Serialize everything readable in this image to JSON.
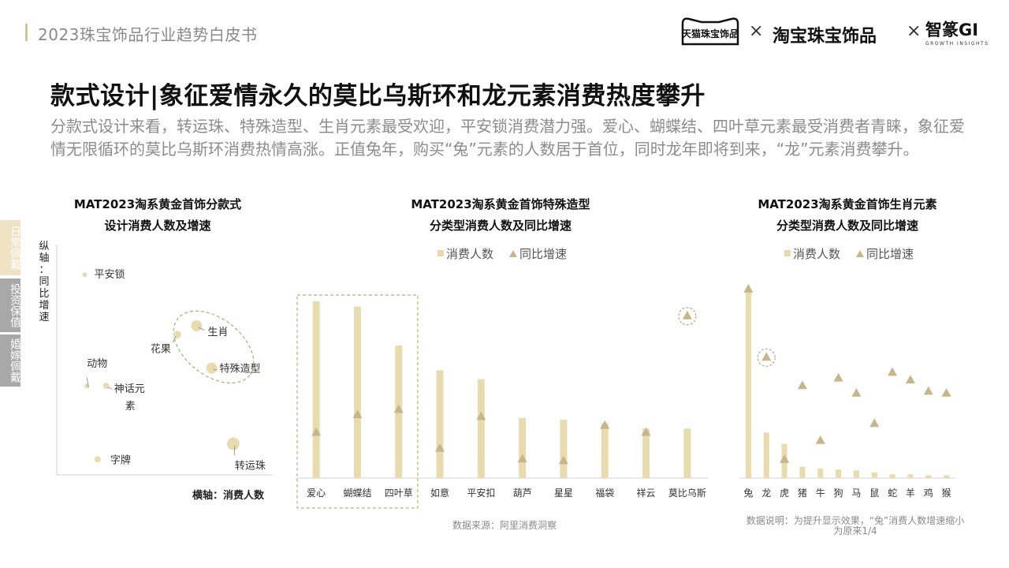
{
  "header": {
    "report_title": "2023珠宝饰品行业趋势白皮书",
    "brands": [
      "天猫珠宝饰品",
      "淘宝珠宝饰品",
      "智篆GI"
    ],
    "brand_sub": "GROWTH INSIGHTS",
    "separator": "×"
  },
  "main": {
    "title": "款式设计|象征爱情永久的莫比乌斯环和龙元素消费热度攀升",
    "description": "分款式设计来看，转运珠、特殊造型、生肖元素最受欢迎，平安锁消费潜力强。爱心、蝴蝶结、四叶草元素最受消费者青睐，象征爱情无限循环的莫比乌斯环消费热情高涨。正值兔年，购买“兔”元素的人数居于首位，同时龙年即将到来，“龙”元素消费攀升。"
  },
  "side_tabs": [
    {
      "label": "日常佩戴",
      "color": "#efe3c4"
    },
    {
      "label": "投资保值",
      "color": "#a8a8a8"
    },
    {
      "label": "婚嫁佩戴",
      "color": "#a8a8a8"
    }
  ],
  "colors": {
    "bar": "#e8dcae",
    "marker": "#c9b58a",
    "accent": "#d9c48e"
  },
  "legend": {
    "bar": "消费人数",
    "marker": "同比增速"
  },
  "chart_data": [
    {
      "type": "scatter",
      "title_lines": [
        "MAT2023淘系黄金首饰分款式",
        "设计消费人数及增速"
      ],
      "xlabel": "横轴：消费人数",
      "ylabel": "纵轴：同比增速",
      "xlim": [
        0,
        100
      ],
      "ylim": [
        0,
        100
      ],
      "points": [
        {
          "label": "平安锁",
          "x": 13,
          "y": 90,
          "size": 3
        },
        {
          "label": "生肖",
          "x": 65,
          "y": 67,
          "size": 7
        },
        {
          "label": "花果",
          "x": 56,
          "y": 63,
          "size": 5
        },
        {
          "label": "特殊造型",
          "x": 72,
          "y": 48,
          "size": 7
        },
        {
          "label": "动物",
          "x": 14,
          "y": 40,
          "size": 3
        },
        {
          "label": "神话元素",
          "x": 23,
          "y": 40,
          "size": 4
        },
        {
          "label": "字牌",
          "x": 19,
          "y": 7,
          "size": 4
        },
        {
          "label": "转运珠",
          "x": 82,
          "y": 14,
          "size": 8
        }
      ],
      "highlight_group": [
        "生肖",
        "特殊造型"
      ]
    },
    {
      "type": "bar",
      "title_lines": [
        "MAT2023淘系黄金首饰特殊造型",
        "分类型消费人数及同比增速"
      ],
      "categories": [
        "爱心",
        "蝴蝶结",
        "四叶草",
        "如意",
        "平安扣",
        "葫芦",
        "星星",
        "福袋",
        "祥云",
        "莫比乌斯"
      ],
      "series": [
        {
          "name": "消费人数",
          "values": [
            100,
            97,
            75,
            61,
            56,
            34,
            33,
            31,
            28,
            28
          ]
        },
        {
          "name": "同比增速",
          "values": [
            26,
            36,
            39,
            17,
            35,
            11,
            10,
            30,
            26,
            92
          ]
        }
      ],
      "ylim": [
        0,
        100
      ],
      "highlight_categories": [
        "爱心",
        "蝴蝶结",
        "四叶草"
      ],
      "highlight_marker": "莫比乌斯",
      "note": "数据来源：阿里消费洞察"
    },
    {
      "type": "bar",
      "title_lines": [
        "MAT2023淘系黄金首饰生肖元素",
        "分类型消费人数及同比增速"
      ],
      "categories": [
        "兔",
        "龙",
        "虎",
        "猪",
        "牛",
        "狗",
        "马",
        "鼠",
        "蛇",
        "羊",
        "鸡",
        "猴"
      ],
      "series": [
        {
          "name": "消费人数",
          "values": [
            100,
            24,
            18,
            6,
            5,
            4.5,
            4,
            3,
            2,
            2,
            1.5,
            1.5
          ]
        },
        {
          "name": "同比增速",
          "values": [
            100,
            64,
            10,
            49,
            20,
            53,
            45,
            29,
            56,
            52,
            46,
            45
          ]
        }
      ],
      "ylim": [
        0,
        100
      ],
      "highlight_marker": "龙",
      "note": "数据说明：为提升显示效果，“兔”消费人数增速缩小为原来1/4"
    }
  ]
}
